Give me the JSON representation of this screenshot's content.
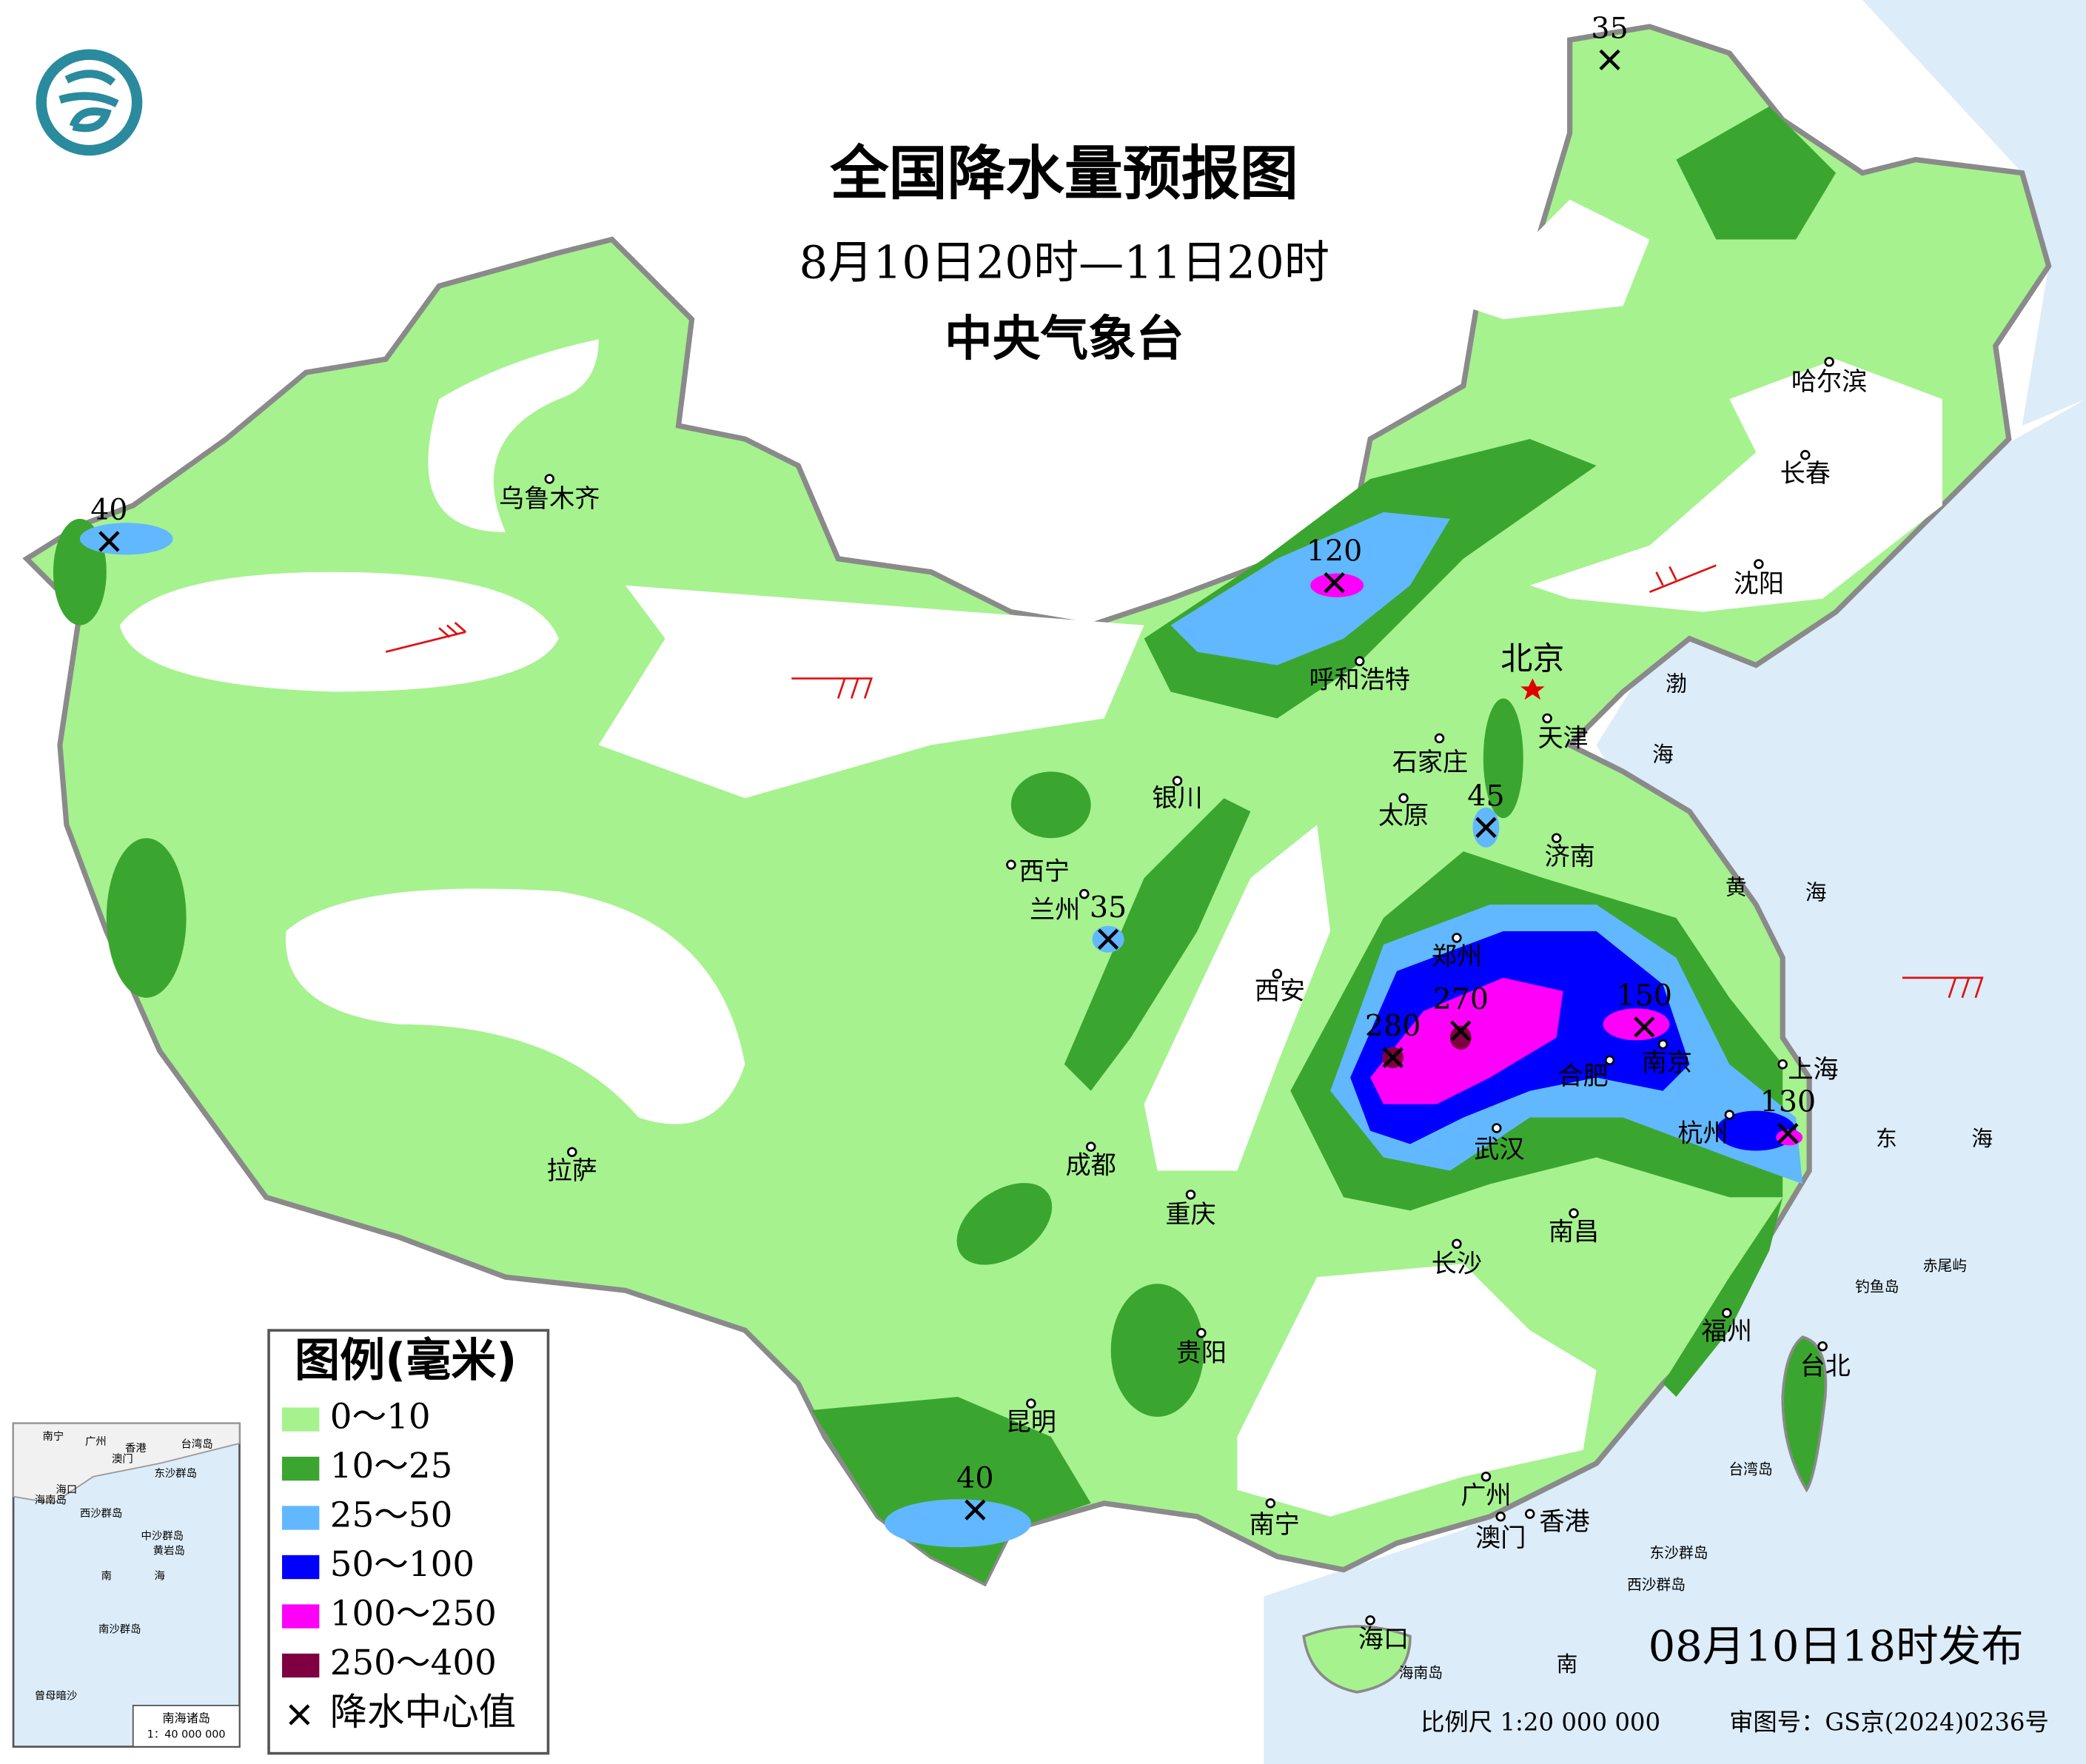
{
  "header": {
    "title": "全国降水量预报图",
    "subtitle": "8月10日20时—11日20时",
    "issuer": "中央气象台"
  },
  "legend": {
    "title": "图例(毫米)",
    "items": [
      {
        "label": "0～10",
        "color": "#a6f28f"
      },
      {
        "label": "10～25",
        "color": "#3ba62f"
      },
      {
        "label": "25～50",
        "color": "#61b8ff"
      },
      {
        "label": "50～100",
        "color": "#0000fe"
      },
      {
        "label": "100～250",
        "color": "#fe00fa"
      },
      {
        "label": "250～400",
        "color": "#7f0040"
      }
    ],
    "center_label": "降水中心值"
  },
  "centers": [
    35,
    40,
    120,
    45,
    35,
    280,
    270,
    150,
    130,
    40
  ],
  "capital": "北京",
  "cities": [
    "乌鲁木齐",
    "哈尔滨",
    "长春",
    "沈阳",
    "呼和浩特",
    "天津",
    "石家庄",
    "太原",
    "济南",
    "银川",
    "西宁",
    "兰州",
    "郑州",
    "西安",
    "合肥",
    "南京",
    "上海",
    "杭州",
    "武汉",
    "成都",
    "重庆",
    "拉萨",
    "长沙",
    "南昌",
    "福州",
    "台北",
    "贵阳",
    "昆明",
    "南宁",
    "广州",
    "澳门",
    "香港",
    "海口"
  ],
  "sea_labels": [
    "渤",
    "海",
    "黄",
    "海",
    "东",
    "海",
    "南"
  ],
  "islands": [
    "钓鱼岛",
    "赤尾屿",
    "台湾岛",
    "东沙群岛",
    "西沙群岛",
    "海南岛"
  ],
  "inset": {
    "labels": [
      "南宁",
      "广州",
      "香港",
      "澳门",
      "台湾岛",
      "海口",
      "东沙群岛",
      "海南岛",
      "西沙群岛",
      "中沙群岛",
      "黄岩岛",
      "南",
      "海",
      "南沙群岛",
      "曾母暗沙"
    ],
    "title": "南海诸岛",
    "scale": "1：40 000 000"
  },
  "footer": {
    "issued": "08月10日18时发布",
    "scale": "比例尺 1:20 000 000",
    "approval": "审图号：GS京(2024)0236号"
  }
}
